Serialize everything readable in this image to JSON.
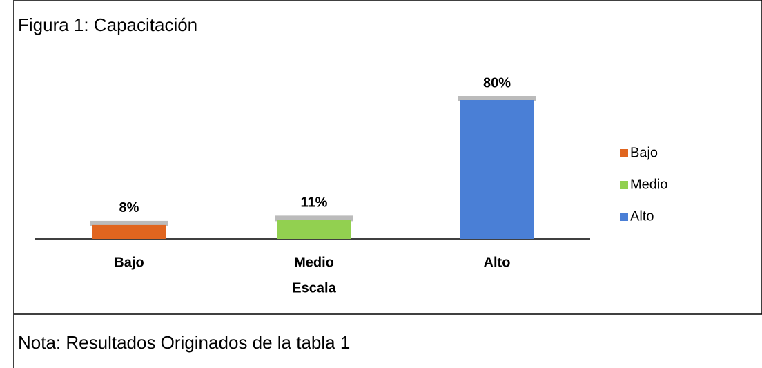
{
  "chart_data": {
    "type": "bar",
    "title": "Figura 1: Capacitación",
    "categories": [
      "Bajo",
      "Medio",
      "Alto"
    ],
    "values": [
      8,
      11,
      80
    ],
    "value_labels": [
      "8%",
      "11%",
      "80%"
    ],
    "colors": [
      "#e0651f",
      "#92d050",
      "#4a7fd6"
    ],
    "x_label": "Escala",
    "legend": "right",
    "note": "Nota: Resultados Originados de la tabla 1"
  }
}
